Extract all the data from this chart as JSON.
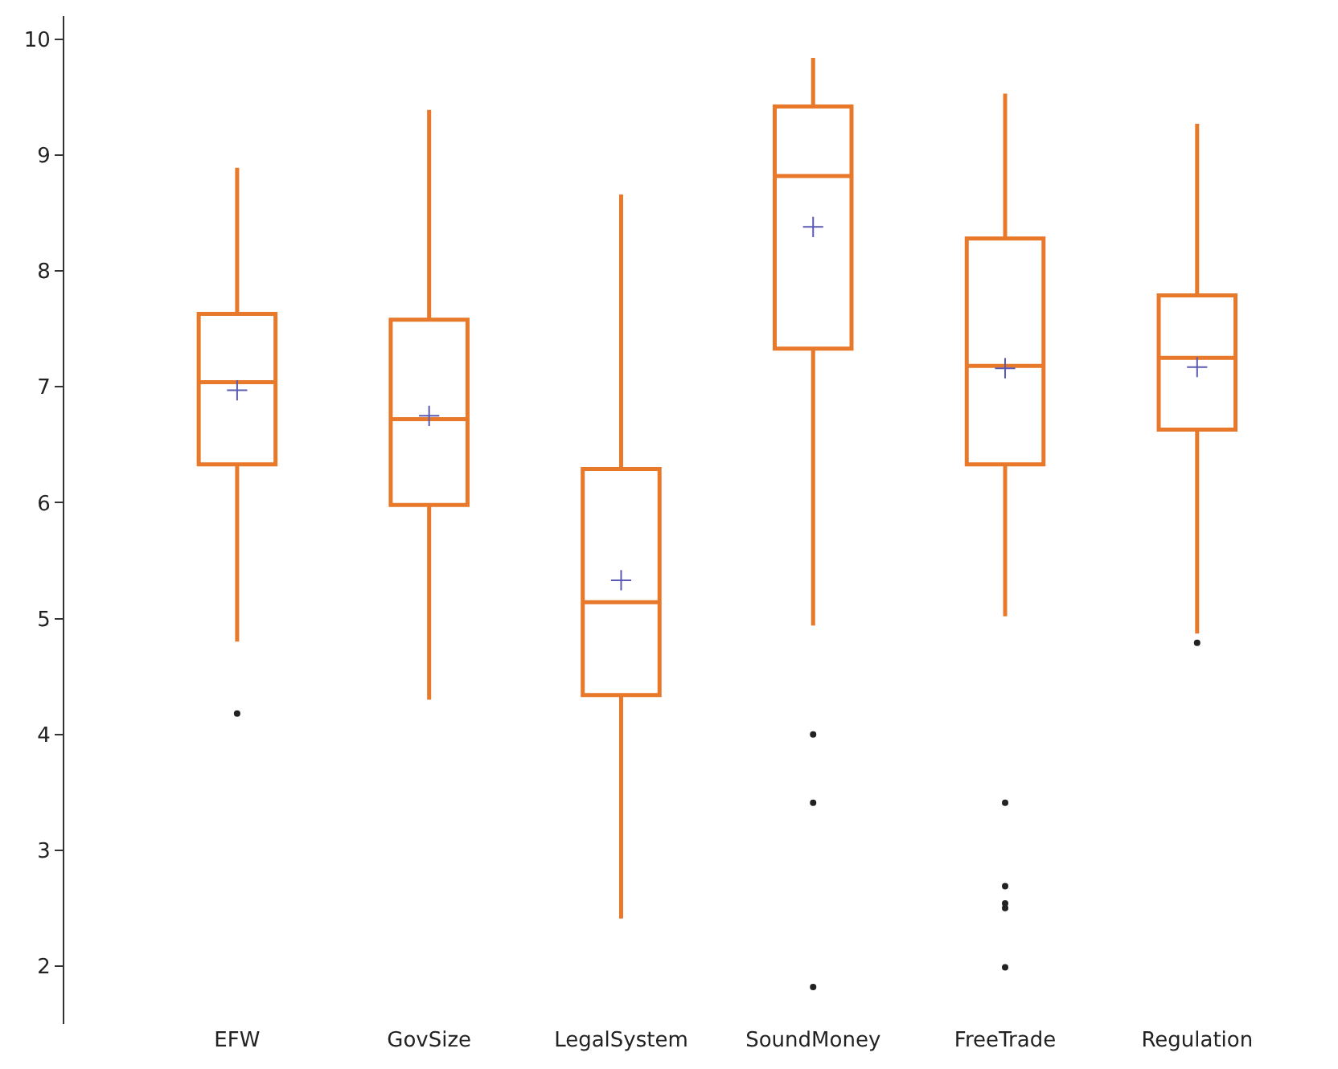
{
  "chart_data": {
    "type": "box",
    "categories": [
      "EFW",
      "GovSize",
      "LegalSystem",
      "SoundMoney",
      "FreeTrade",
      "Regulation"
    ],
    "series": [
      {
        "color": "#e8782a",
        "boxes": [
          {
            "low": 4.8,
            "q1": 6.33,
            "median": 7.04,
            "q3": 7.63,
            "high": 8.89,
            "mean": 6.97,
            "outliers": [
              4.18
            ]
          },
          {
            "low": 4.3,
            "q1": 5.98,
            "median": 6.72,
            "q3": 7.58,
            "high": 9.39,
            "mean": 6.75
          },
          {
            "low": 2.41,
            "q1": 4.34,
            "median": 5.14,
            "q3": 6.29,
            "high": 8.66,
            "mean": 5.33
          },
          {
            "low": 4.94,
            "q1": 7.33,
            "median": 8.82,
            "q3": 9.42,
            "high": 9.84,
            "mean": 8.38,
            "outliers": [
              4.0,
              3.41,
              1.82
            ]
          },
          {
            "low": 5.02,
            "q1": 6.33,
            "median": 7.18,
            "q3": 8.28,
            "high": 9.53,
            "mean": 7.16,
            "outliers": [
              3.41,
              2.69,
              2.54,
              2.5,
              1.99
            ]
          },
          {
            "low": 4.87,
            "q1": 6.63,
            "median": 7.25,
            "q3": 7.79,
            "high": 9.27,
            "mean": 7.17,
            "outliers": [
              4.79
            ]
          }
        ]
      }
    ],
    "ylim": [
      1.5,
      10.2
    ],
    "yticks": [
      2,
      3,
      4,
      5,
      6,
      7,
      8,
      9,
      10
    ]
  }
}
